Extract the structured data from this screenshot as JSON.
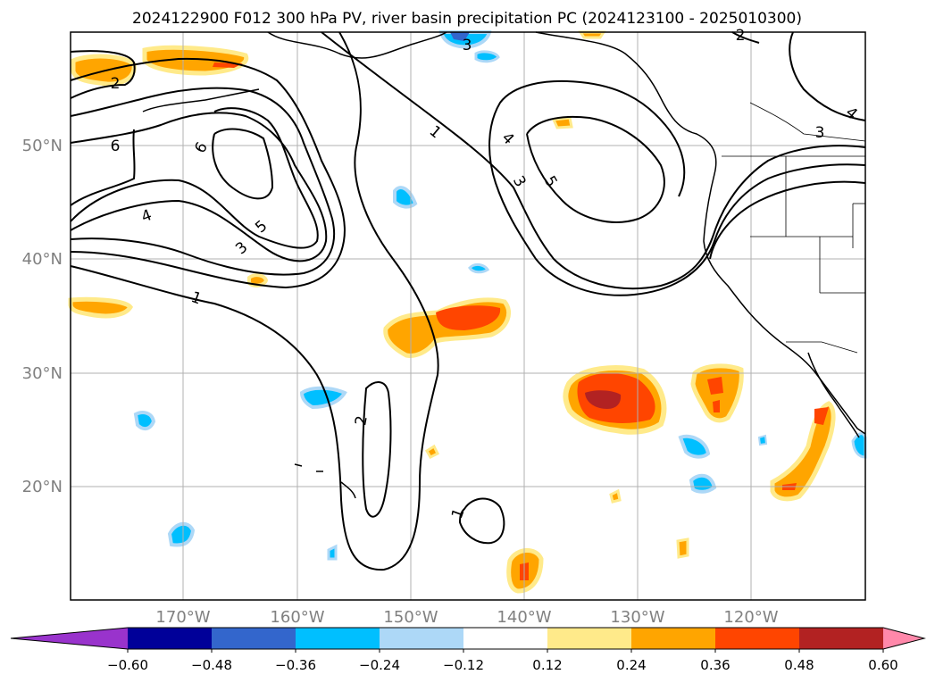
{
  "title": "2024122900 F012 300 hPa PV, river basin precipitation PC (2024123100 - 2025010300)",
  "map": {
    "lat_labels": [
      "50°N",
      "40°N",
      "30°N",
      "20°N"
    ],
    "lon_labels": [
      "170°W",
      "160°W",
      "150°W",
      "140°W",
      "130°W",
      "120°W"
    ],
    "contour_labels": [
      "2",
      "6",
      "6",
      "5",
      "4",
      "3",
      "1",
      "1",
      "4",
      "3",
      "5",
      "3",
      "2",
      "2",
      "1",
      "3",
      "4"
    ]
  },
  "colorbar": {
    "tick_labels": [
      "−0.60",
      "−0.48",
      "−0.36",
      "−0.24",
      "−0.12",
      "0.12",
      "0.24",
      "0.36",
      "0.48",
      "0.60"
    ],
    "colors": [
      "#9933cc",
      "#000099",
      "#3366cc",
      "#00bfff",
      "#add8f7",
      "#ffffff",
      "#ffea8a",
      "#ffa500",
      "#ff4500",
      "#b22222",
      "#ff88aa"
    ]
  }
}
